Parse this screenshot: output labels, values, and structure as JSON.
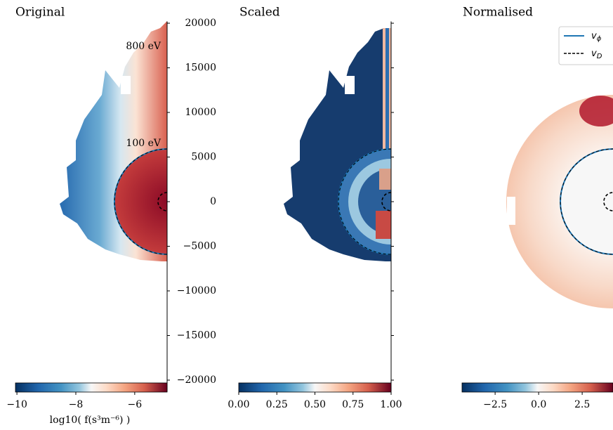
{
  "chart_data": [
    {
      "type": "heatmap",
      "title": "Original",
      "ylim": [
        -21300,
        20200
      ],
      "yticks": [
        20000,
        15000,
        10000,
        5000,
        0,
        {
          "value": -5000,
          "label": "−5000"
        },
        {
          "value": -10000,
          "label": "−10000"
        },
        {
          "value": -15000,
          "label": "−15000"
        },
        {
          "value": -20000,
          "label": "−20000"
        }
      ],
      "annotations": [
        "800 eV",
        "100 eV"
      ],
      "colorbar": {
        "label": "log10( f(s³m⁻⁶) )",
        "lim": [
          -10.05,
          -4.9
        ],
        "ticks": [
          {
            "value": -10,
            "label": "−10"
          },
          {
            "value": -8,
            "label": "−8"
          },
          {
            "value": -6,
            "label": "−6"
          }
        ]
      }
    },
    {
      "type": "heatmap",
      "title": "Scaled",
      "colorbar": {
        "lim": [
          0,
          1
        ],
        "ticks": [
          {
            "value": 0,
            "label": "0.00"
          },
          {
            "value": 0.25,
            "label": "0.25"
          },
          {
            "value": 0.5,
            "label": "0.50"
          },
          {
            "value": 0.75,
            "label": "0.75"
          },
          {
            "value": 1,
            "label": "1.00"
          }
        ]
      }
    },
    {
      "type": "heatmap",
      "title": "Normalised",
      "colorbar": {
        "lim": [
          -4.4,
          4.27
        ],
        "ticks": [
          {
            "value": -2.5,
            "label": "−2.5"
          },
          {
            "value": 0,
            "label": "0.0"
          },
          {
            "value": 2.5,
            "label": "2.5"
          }
        ]
      },
      "legend": [
        {
          "symbol": "v",
          "subscript": "ϕ"
        },
        {
          "symbol": "v",
          "subscript": "D"
        }
      ]
    }
  ]
}
